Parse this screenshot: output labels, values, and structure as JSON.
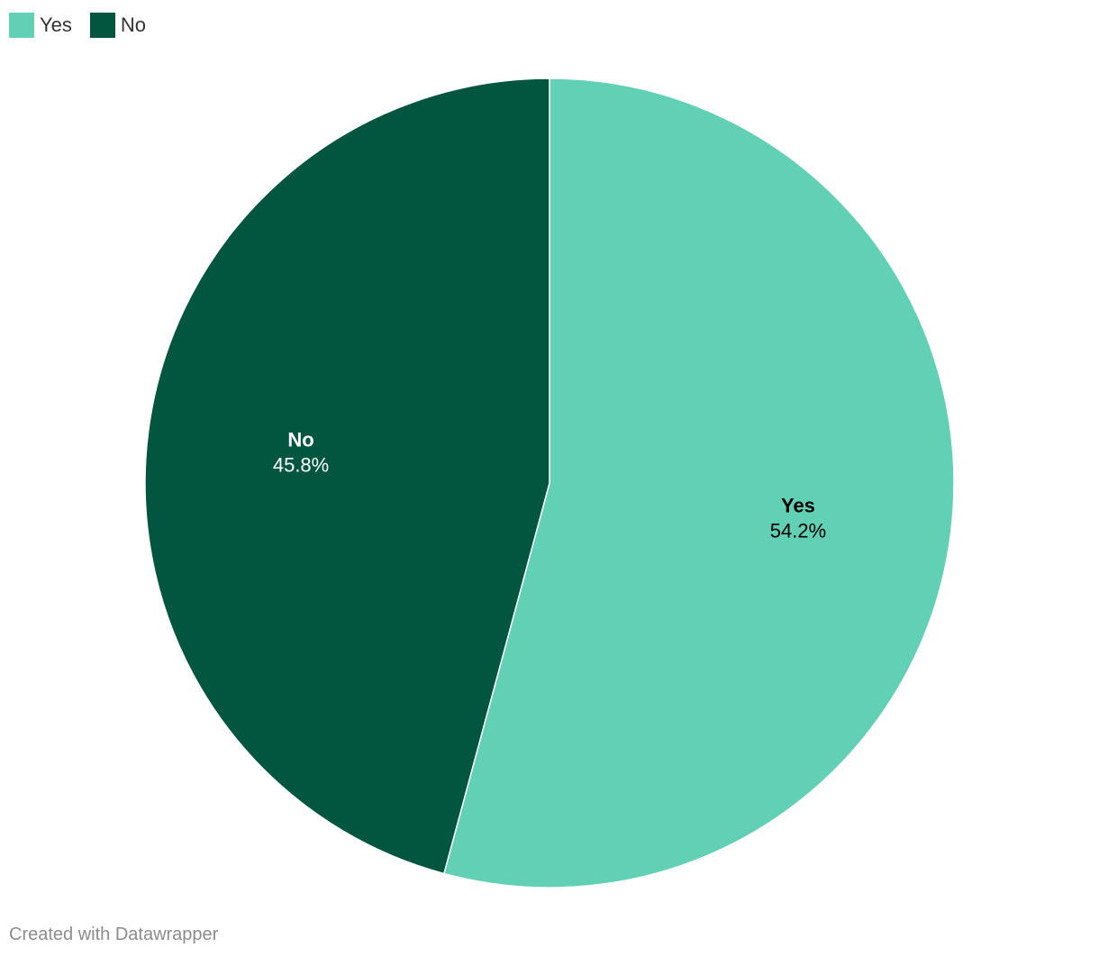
{
  "colors": {
    "yes": "#61d0b4",
    "no": "#02563f",
    "border": "#ffffff"
  },
  "legend": [
    {
      "label": "Yes",
      "color": "#61d0b4"
    },
    {
      "label": "No",
      "color": "#02563f"
    }
  ],
  "chart_data": {
    "type": "pie",
    "title": "",
    "legend_position": "top-left",
    "slices": [
      {
        "label": "Yes",
        "value": 54.2,
        "display": "54.2%",
        "color": "#61d0b4",
        "text_color": "#000000"
      },
      {
        "label": "No",
        "value": 45.8,
        "display": "45.8%",
        "color": "#02563f",
        "text_color": "#ffffff"
      }
    ]
  },
  "footer": {
    "credit": "Created with Datawrapper"
  }
}
